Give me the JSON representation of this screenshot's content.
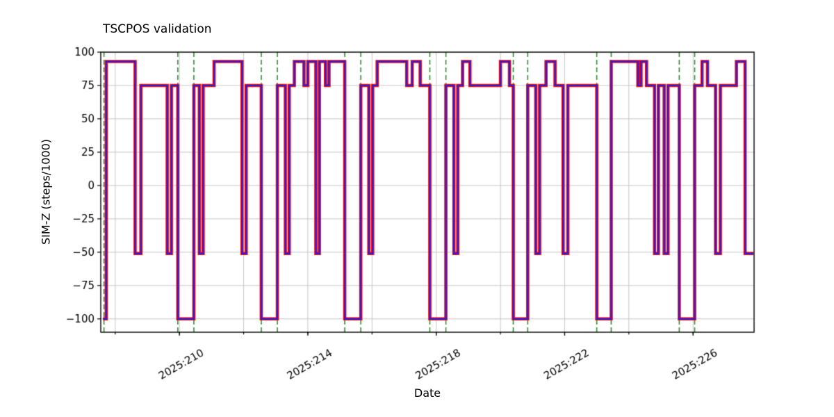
{
  "chart_data": {
    "type": "line",
    "step_mode": "post",
    "title": "TSCPOS validation",
    "xlabel": "Date",
    "ylabel": "SIM-Z (steps/1000)",
    "xlim": [
      207.55,
      227.9
    ],
    "ylim": [
      -110,
      100
    ],
    "grid": true,
    "grid_color": "#c6c6c6",
    "axis_color": "#000000",
    "xticks": [
      {
        "value": 210,
        "label": "2025:210"
      },
      {
        "value": 214,
        "label": "2025:214"
      },
      {
        "value": 218,
        "label": "2025:218"
      },
      {
        "value": 222,
        "label": "2025:222"
      },
      {
        "value": 226,
        "label": "2025:226"
      }
    ],
    "x_gridlines": [
      208,
      210,
      212,
      214,
      216,
      218,
      220,
      222,
      224,
      226
    ],
    "yticks": [
      {
        "value": 100,
        "label": "100"
      },
      {
        "value": 75,
        "label": "75"
      },
      {
        "value": 50,
        "label": "50"
      },
      {
        "value": 25,
        "label": "25"
      },
      {
        "value": 0,
        "label": "0"
      },
      {
        "value": -25,
        "label": "−25"
      },
      {
        "value": -50,
        "label": "−50"
      },
      {
        "value": -75,
        "label": "−75"
      },
      {
        "value": -100,
        "label": "−100"
      }
    ],
    "vlines": {
      "color": "#2e8b2e",
      "dash": [
        7,
        4
      ],
      "x": [
        207.65,
        209.95,
        210.45,
        212.55,
        213.05,
        215.15,
        215.65,
        217.8,
        218.3,
        220.4,
        220.85,
        223.0,
        223.45,
        225.57,
        226.05
      ]
    },
    "series": [
      {
        "name": "outline-red",
        "color": "#ff0000",
        "line_width": 4.6
      },
      {
        "name": "core-blue",
        "color": "#2222dd",
        "line_width": 2.2
      }
    ],
    "steps": [
      [
        207.62,
        -100
      ],
      [
        207.72,
        93
      ],
      [
        208.62,
        -51
      ],
      [
        208.8,
        75
      ],
      [
        209.62,
        -51
      ],
      [
        209.75,
        75
      ],
      [
        209.95,
        -100
      ],
      [
        210.45,
        75
      ],
      [
        210.62,
        -51
      ],
      [
        210.74,
        75
      ],
      [
        211.08,
        93
      ],
      [
        211.95,
        -51
      ],
      [
        212.08,
        75
      ],
      [
        212.55,
        -100
      ],
      [
        213.05,
        75
      ],
      [
        213.3,
        -51
      ],
      [
        213.42,
        75
      ],
      [
        213.58,
        93
      ],
      [
        213.88,
        75
      ],
      [
        214.0,
        93
      ],
      [
        214.25,
        -51
      ],
      [
        214.36,
        93
      ],
      [
        214.55,
        75
      ],
      [
        214.66,
        93
      ],
      [
        215.15,
        -100
      ],
      [
        215.65,
        75
      ],
      [
        215.9,
        -51
      ],
      [
        216.02,
        75
      ],
      [
        216.16,
        93
      ],
      [
        217.08,
        75
      ],
      [
        217.25,
        93
      ],
      [
        217.5,
        75
      ],
      [
        217.8,
        -100
      ],
      [
        218.3,
        75
      ],
      [
        218.55,
        -51
      ],
      [
        218.67,
        75
      ],
      [
        218.82,
        93
      ],
      [
        219.05,
        75
      ],
      [
        220.0,
        93
      ],
      [
        220.28,
        75
      ],
      [
        220.4,
        -100
      ],
      [
        220.85,
        75
      ],
      [
        221.1,
        -51
      ],
      [
        221.22,
        75
      ],
      [
        221.42,
        93
      ],
      [
        221.7,
        75
      ],
      [
        221.95,
        -51
      ],
      [
        222.1,
        75
      ],
      [
        223.0,
        -100
      ],
      [
        223.45,
        93
      ],
      [
        224.28,
        75
      ],
      [
        224.38,
        93
      ],
      [
        224.55,
        75
      ],
      [
        224.8,
        -51
      ],
      [
        224.92,
        75
      ],
      [
        225.1,
        -51
      ],
      [
        225.22,
        75
      ],
      [
        225.57,
        -100
      ],
      [
        226.05,
        75
      ],
      [
        226.28,
        93
      ],
      [
        226.45,
        75
      ],
      [
        226.7,
        -51
      ],
      [
        226.85,
        75
      ],
      [
        227.35,
        93
      ],
      [
        227.62,
        -51
      ],
      [
        227.88,
        -51
      ]
    ]
  }
}
